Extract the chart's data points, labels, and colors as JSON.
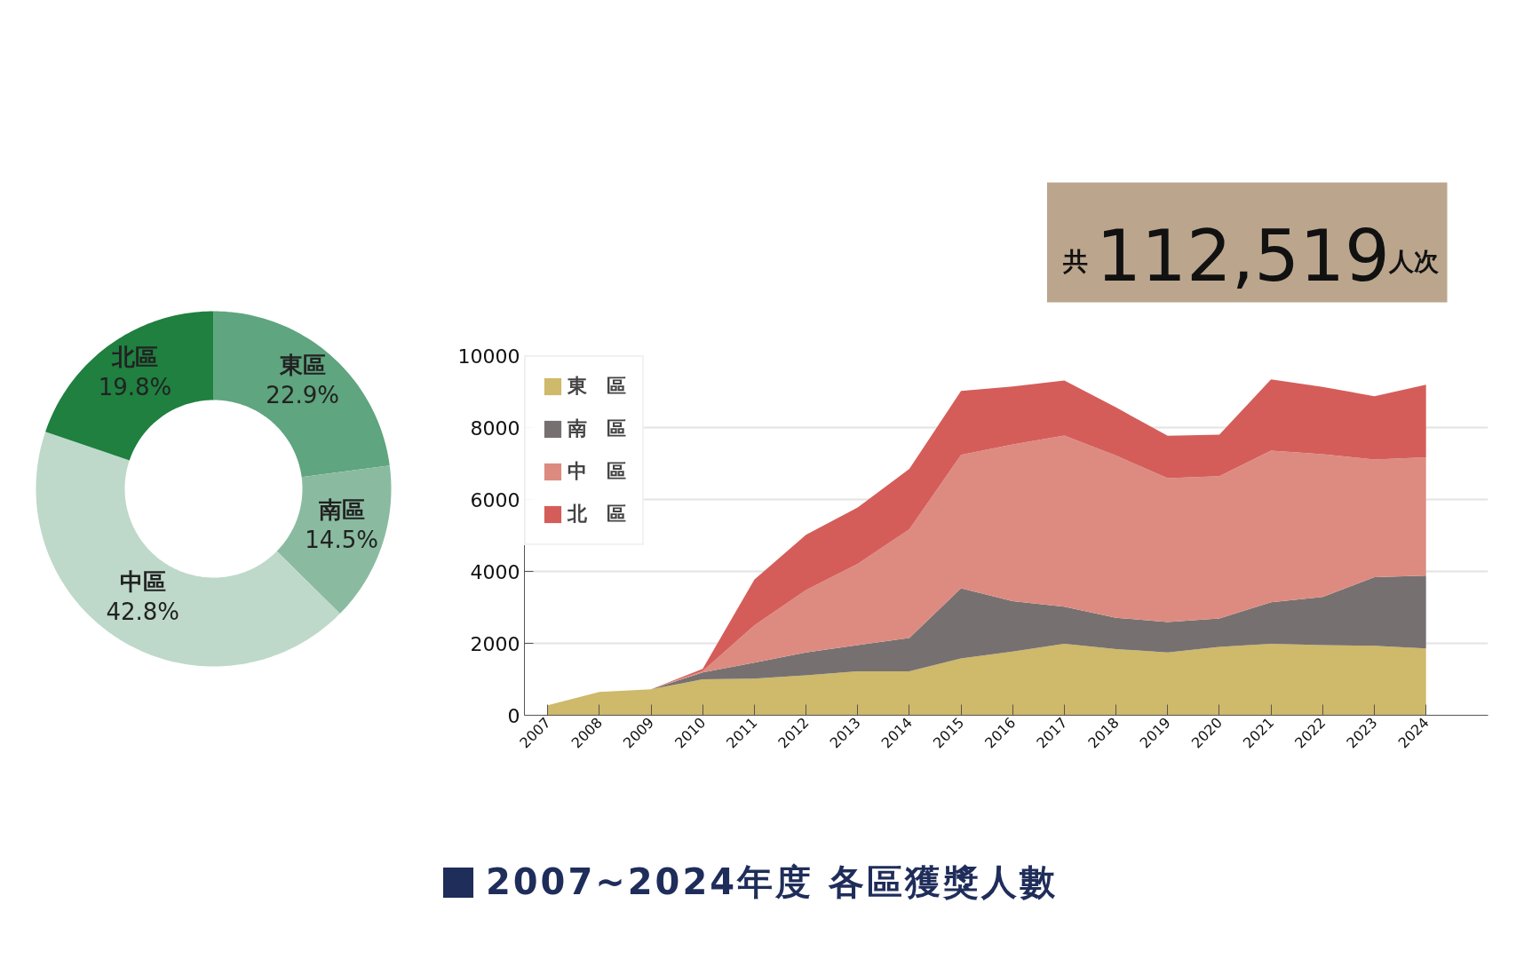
{
  "chart_data": [
    {
      "type": "donut",
      "categories": [
        "東區",
        "南區",
        "中區",
        "北區"
      ],
      "values": [
        22.9,
        14.5,
        42.8,
        19.8
      ],
      "colors": [
        "#5fa57f",
        "#8abba0",
        "#bed9c9",
        "#1f8040"
      ],
      "value_labels": [
        "22.9%",
        "14.5%",
        "42.8%",
        "19.8%"
      ]
    },
    {
      "type": "other",
      "annotations": [
        "共",
        "112,519",
        "人次"
      ],
      "color": "#bba68d"
    },
    {
      "type": "area",
      "title": "2007~2024年度 各區獲獎人數",
      "stacked": true,
      "categories": [
        "2007",
        "2008",
        "2009",
        "2010",
        "2011",
        "2012",
        "2013",
        "2014",
        "2015",
        "2016",
        "2017",
        "2018",
        "2019",
        "2020",
        "2021",
        "2022",
        "2023",
        "2024"
      ],
      "series": [
        {
          "name": "東　區",
          "color": "#cfb96a",
          "values": [
            280,
            650,
            720,
            1000,
            1020,
            1110,
            1220,
            1220,
            1580,
            1770,
            1990,
            1840,
            1750,
            1900,
            1990,
            1950,
            1930,
            1860
          ]
        },
        {
          "name": "南　區",
          "color": "#767170",
          "values": [
            0,
            0,
            0,
            190,
            440,
            640,
            730,
            930,
            1950,
            1400,
            1030,
            870,
            840,
            790,
            1150,
            1340,
            1910,
            2020
          ]
        },
        {
          "name": "中　區",
          "color": "#dd8b80",
          "values": [
            0,
            0,
            0,
            40,
            1040,
            1730,
            2260,
            3020,
            3710,
            4360,
            4760,
            4510,
            4000,
            3960,
            4220,
            3970,
            3270,
            3290
          ]
        },
        {
          "name": "北　區",
          "color": "#d45d5a",
          "values": [
            0,
            0,
            0,
            60,
            1270,
            1540,
            1570,
            1680,
            1780,
            1610,
            1530,
            1340,
            1180,
            1150,
            1980,
            1870,
            1760,
            2020
          ]
        }
      ],
      "ylim": [
        0,
        10000
      ],
      "yticks": [
        0,
        2000,
        4000,
        6000,
        8000,
        10000
      ],
      "grid": "y",
      "legend": "top left"
    }
  ]
}
